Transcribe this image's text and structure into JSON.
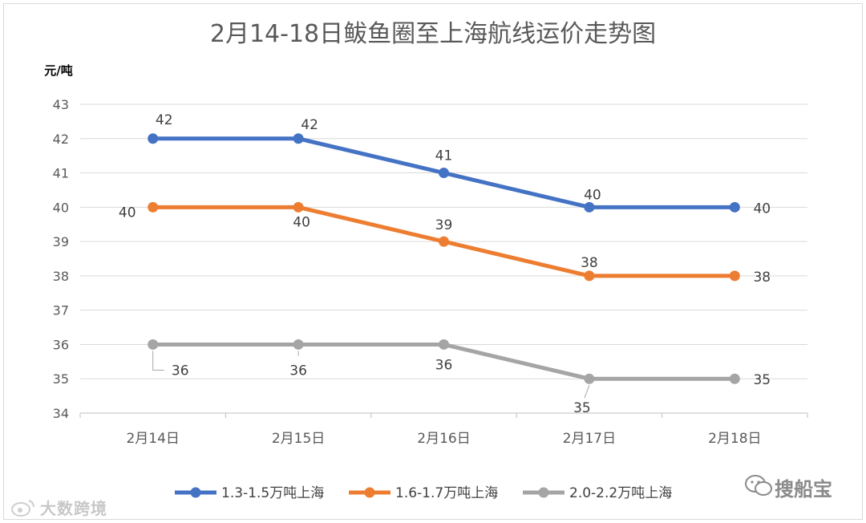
{
  "chart_data": {
    "type": "line",
    "title": "2月14-18日鲅鱼圈至上海航线运价走势图",
    "ylabel": "元/吨",
    "xlabel": "",
    "categories": [
      "2月14日",
      "2月15日",
      "2月16日",
      "2月17日",
      "2月18日"
    ],
    "ylim": [
      34,
      43
    ],
    "yticks": [
      "34",
      "35",
      "36",
      "37",
      "38",
      "39",
      "40",
      "41",
      "42",
      "43"
    ],
    "grid": true,
    "legend_position": "bottom",
    "series": [
      {
        "name": "1.3-1.5万吨上海",
        "color": "#4472c4",
        "values": [
          42,
          42,
          41,
          40,
          40
        ]
      },
      {
        "name": "1.6-1.7万吨上海",
        "color": "#ed7d31",
        "values": [
          40,
          40,
          39,
          38,
          38
        ]
      },
      {
        "name": "2.0-2.2万吨上海",
        "color": "#a5a5a5",
        "values": [
          36,
          36,
          36,
          35,
          35
        ]
      }
    ]
  },
  "watermarks": {
    "left": "大数跨境",
    "right": "搜船宝"
  }
}
